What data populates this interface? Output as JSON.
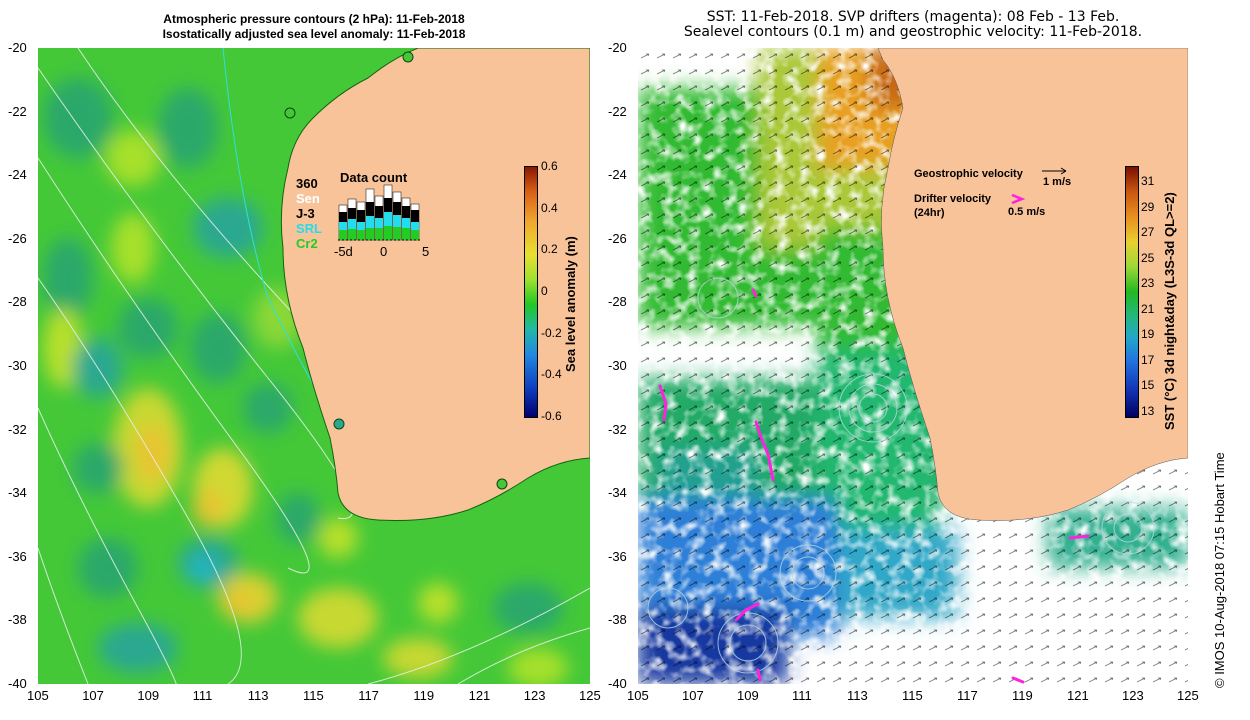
{
  "left_panel": {
    "title_line1": "Atmospheric pressure contours (2 hPa): 11-Feb-2018",
    "title_line2": "Isostatically adjusted sea level anomaly: 11-Feb-2018",
    "colorbar": {
      "label": "Sea level anomaly (m)",
      "ticks": [
        "0.6",
        "0.4",
        "0.2",
        "0",
        "-0.2",
        "-0.4",
        "-0.6"
      ],
      "range": [
        -0.6,
        0.6
      ]
    },
    "data_count": {
      "title": "Data count",
      "legend": [
        {
          "name": "360",
          "color": "#000000"
        },
        {
          "name": "Sen",
          "color": "#ffffff"
        },
        {
          "name": "J-3",
          "color": "#000000"
        },
        {
          "name": "SRL",
          "color": "#22ddee"
        },
        {
          "name": "Cr2",
          "color": "#22cc22"
        }
      ],
      "x_ticks": [
        "-5d",
        "0",
        "5"
      ]
    }
  },
  "right_panel": {
    "title_line1": "SST: 11-Feb-2018. SVP drifters (magenta): 08 Feb - 13 Feb.",
    "title_line2": "Sealevel contours (0.1 m) and geostrophic velocity: 11-Feb-2018.",
    "colorbar": {
      "label": "SST (°C) 3d night&day (L3S-3d QL>=2)",
      "ticks": [
        "31",
        "29",
        "27",
        "25",
        "23",
        "21",
        "19",
        "17",
        "15",
        "13"
      ],
      "range": [
        13,
        32
      ]
    },
    "legend": {
      "geostrophic": "Geostrophic velocity",
      "geostrophic_scale": "1 m/s",
      "drifter": "Drifter velocity",
      "drifter_period": "(24hr)",
      "drifter_scale": "0.5 m/s"
    }
  },
  "axes": {
    "lat_labels": [
      "-20",
      "-22",
      "-24",
      "-26",
      "-28",
      "-30",
      "-32",
      "-34",
      "-36",
      "-38",
      "-40"
    ],
    "lon_labels": [
      "105",
      "107",
      "109",
      "111",
      "113",
      "115",
      "117",
      "119",
      "121",
      "123",
      "125"
    ],
    "lat_range": [
      -40,
      -20
    ],
    "lon_range": [
      105,
      125
    ]
  },
  "colors": {
    "land": "#f9c39a",
    "sla_base": "#44c838",
    "drifter": "#ff22dd"
  },
  "credit": "© IMOS 10-Aug-2018 07:15 Hobart Time"
}
